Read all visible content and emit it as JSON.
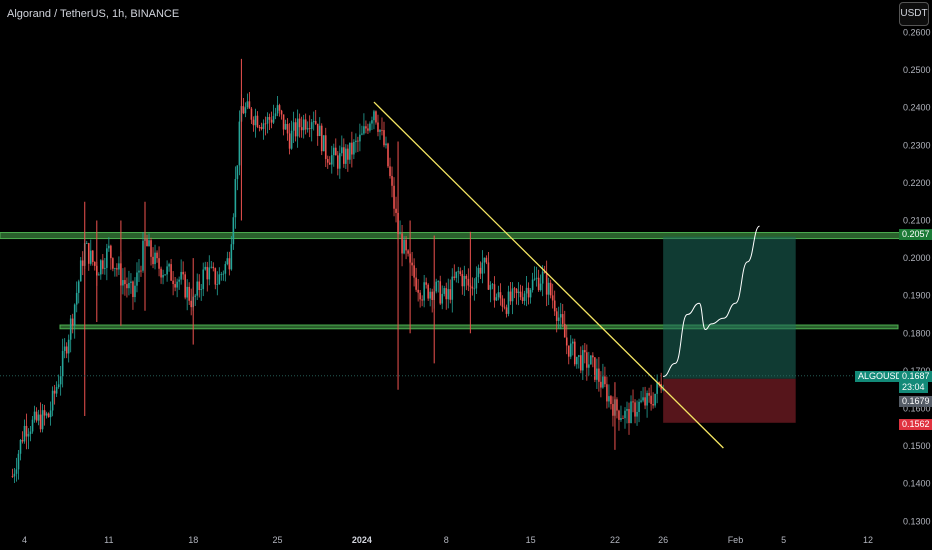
{
  "header": {
    "title": "Algorand / TetherUS, 1h, BINANCE",
    "currency_button": "USDT"
  },
  "colors": {
    "background": "#000000",
    "up_candle": "#26a69a",
    "down_candle": "#ef5350",
    "trendline": "#f5e663",
    "zone": "#4caf50",
    "target_box": "#1e6b5c",
    "stop_box": "#6b1a22",
    "projection": "#ffffff"
  },
  "price_tags": {
    "zone_price": "0.2057",
    "symbol": "ALGOUSDT",
    "last_price": "0.1687",
    "countdown": "23:04",
    "entry_price": "0.1679",
    "stop_price": "0.1562"
  },
  "chart_data": {
    "type": "candlestick",
    "title": "Algorand / TetherUS, 1h, BINANCE",
    "ylim": [
      0.13,
      0.26
    ],
    "y_ticks": [
      "0.1300",
      "0.1400",
      "0.1500",
      "0.1600",
      "0.1700",
      "0.1800",
      "0.1900",
      "0.2000",
      "0.2100",
      "0.2200",
      "0.2300",
      "0.2400",
      "0.2500",
      "0.2600"
    ],
    "x_ticks": [
      {
        "label": "4",
        "x": "2023-12-04"
      },
      {
        "label": "11",
        "x": "2023-12-11"
      },
      {
        "label": "18",
        "x": "2023-12-18"
      },
      {
        "label": "25",
        "x": "2023-12-25"
      },
      {
        "label": "2024",
        "x": "2024-01-01",
        "bold": true
      },
      {
        "label": "8",
        "x": "2024-01-08"
      },
      {
        "label": "15",
        "x": "2024-01-15"
      },
      {
        "label": "22",
        "x": "2024-01-22"
      },
      {
        "label": "26",
        "x": "2024-01-26"
      },
      {
        "label": "Feb",
        "x": "2024-02-01"
      },
      {
        "label": "5",
        "x": "2024-02-05"
      },
      {
        "label": "12",
        "x": "2024-02-12"
      }
    ],
    "price_path": [
      [
        "2023-12-03",
        0.142
      ],
      [
        "2023-12-04",
        0.155
      ],
      [
        "2023-12-06",
        0.158
      ],
      [
        "2023-12-07",
        0.17
      ],
      [
        "2023-12-08",
        0.185
      ],
      [
        "2023-12-09",
        0.203
      ],
      [
        "2023-12-10",
        0.197
      ],
      [
        "2023-12-11",
        0.202
      ],
      [
        "2023-12-12",
        0.195
      ],
      [
        "2023-12-13",
        0.19
      ],
      [
        "2023-12-14",
        0.204
      ],
      [
        "2023-12-15",
        0.198
      ],
      [
        "2023-12-16",
        0.196
      ],
      [
        "2023-12-17",
        0.194
      ],
      [
        "2023-12-18",
        0.188
      ],
      [
        "2023-12-19",
        0.197
      ],
      [
        "2023-12-20",
        0.194
      ],
      [
        "2023-12-21",
        0.2
      ],
      [
        "2023-12-22",
        0.24
      ],
      [
        "2023-12-23",
        0.238
      ],
      [
        "2023-12-24",
        0.236
      ],
      [
        "2023-12-25",
        0.239
      ],
      [
        "2023-12-26",
        0.232
      ],
      [
        "2023-12-27",
        0.236
      ],
      [
        "2023-12-28",
        0.238
      ],
      [
        "2023-12-29",
        0.228
      ],
      [
        "2023-12-30",
        0.226
      ],
      [
        "2023-12-31",
        0.228
      ],
      [
        "2024-01-01",
        0.232
      ],
      [
        "2024-01-02",
        0.24
      ],
      [
        "2024-01-03",
        0.228
      ],
      [
        "2024-01-04",
        0.207
      ],
      [
        "2024-01-05",
        0.197
      ],
      [
        "2024-01-06",
        0.191
      ],
      [
        "2024-01-07",
        0.192
      ],
      [
        "2024-01-08",
        0.189
      ],
      [
        "2024-01-09",
        0.196
      ],
      [
        "2024-01-10",
        0.192
      ],
      [
        "2024-01-11",
        0.199
      ],
      [
        "2024-01-12",
        0.19
      ],
      [
        "2024-01-13",
        0.188
      ],
      [
        "2024-01-14",
        0.19
      ],
      [
        "2024-01-15",
        0.193
      ],
      [
        "2024-01-16",
        0.195
      ],
      [
        "2024-01-17",
        0.188
      ],
      [
        "2024-01-18",
        0.177
      ],
      [
        "2024-01-19",
        0.173
      ],
      [
        "2024-01-20",
        0.172
      ],
      [
        "2024-01-21",
        0.166
      ],
      [
        "2024-01-22",
        0.16
      ],
      [
        "2024-01-23",
        0.158
      ],
      [
        "2024-01-24",
        0.161
      ],
      [
        "2024-01-25",
        0.162
      ],
      [
        "2024-01-26",
        0.168
      ]
    ],
    "spikes": [
      [
        "2023-12-09",
        0.158,
        0.215
      ],
      [
        "2023-12-10",
        0.183,
        0.21
      ],
      [
        "2023-12-12",
        0.182,
        0.21
      ],
      [
        "2023-12-14",
        0.186,
        0.215
      ],
      [
        "2023-12-18",
        0.177,
        0.2
      ],
      [
        "2023-12-22",
        0.21,
        0.253
      ],
      [
        "2024-01-04",
        0.165,
        0.231
      ],
      [
        "2024-01-05",
        0.18,
        0.21
      ],
      [
        "2024-01-07",
        0.172,
        0.206
      ],
      [
        "2024-01-10",
        0.18,
        0.207
      ],
      [
        "2024-01-22",
        0.149,
        0.167
      ]
    ],
    "zones": [
      {
        "from": 0.2052,
        "to": 0.2068
      },
      {
        "from": 0.1812,
        "to": 0.1822
      }
    ],
    "trendline": [
      [
        "2024-01-02",
        0.2415
      ],
      [
        "2024-01-31",
        0.1495
      ]
    ],
    "position": {
      "start": "2024-01-26",
      "end": "2024-02-06",
      "entry": 0.1679,
      "target": 0.2057,
      "stop": 0.1562
    },
    "projection": [
      [
        "2024-01-26",
        0.1685
      ],
      [
        "2024-01-27",
        0.172
      ],
      [
        "2024-01-28",
        0.185
      ],
      [
        "2024-01-29",
        0.188
      ],
      [
        "2024-01-29T12",
        0.181
      ],
      [
        "2024-01-30",
        0.1825
      ],
      [
        "2024-01-31",
        0.184
      ],
      [
        "2024-02-01",
        0.188
      ],
      [
        "2024-02-02",
        0.199
      ],
      [
        "2024-02-03",
        0.2085
      ]
    ]
  }
}
